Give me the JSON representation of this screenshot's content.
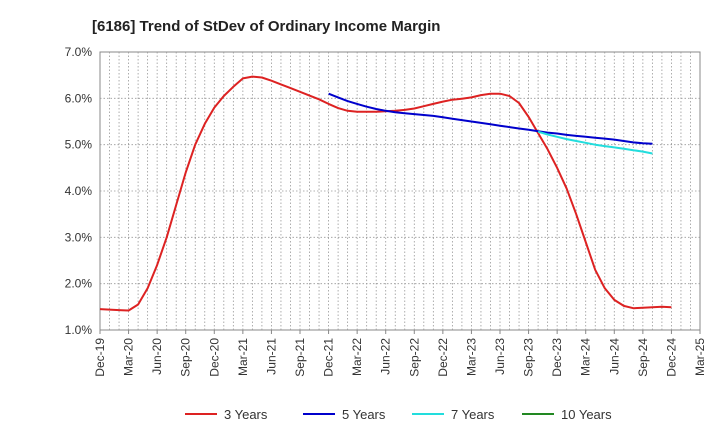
{
  "chart_data": {
    "type": "line",
    "title": "[6186]  Trend of StDev of Ordinary Income Margin",
    "xlabel": "",
    "ylabel": "",
    "ylim": [
      1.0,
      7.0
    ],
    "yticks": [
      "1.0%",
      "2.0%",
      "3.0%",
      "4.0%",
      "5.0%",
      "6.0%",
      "7.0%"
    ],
    "xticks": [
      "Dec-19",
      "Mar-20",
      "Jun-20",
      "Sep-20",
      "Dec-20",
      "Mar-21",
      "Jun-21",
      "Sep-21",
      "Dec-21",
      "Mar-22",
      "Jun-22",
      "Sep-22",
      "Dec-22",
      "Mar-23",
      "Jun-23",
      "Sep-23",
      "Dec-23",
      "Mar-24",
      "Jun-24",
      "Sep-24",
      "Dec-24",
      "Mar-25"
    ],
    "grid": true,
    "legend_position": "bottom",
    "series": [
      {
        "name": "3 Years",
        "color": "#dd2222",
        "start_index": 0,
        "values": [
          1.45,
          1.44,
          1.43,
          1.42,
          1.55,
          1.9,
          2.4,
          3.0,
          3.7,
          4.4,
          5.0,
          5.45,
          5.8,
          6.05,
          6.25,
          6.43,
          6.47,
          6.45,
          6.38,
          6.3,
          6.22,
          6.14,
          6.06,
          5.98,
          5.88,
          5.79,
          5.73,
          5.71,
          5.71,
          5.71,
          5.72,
          5.73,
          5.75,
          5.78,
          5.83,
          5.88,
          5.93,
          5.97,
          5.99,
          6.02,
          6.07,
          6.1,
          6.1,
          6.05,
          5.9,
          5.6,
          5.25,
          4.9,
          4.5,
          4.05,
          3.5,
          2.9,
          2.3,
          1.9,
          1.65,
          1.52,
          1.47,
          1.48,
          1.49,
          1.5,
          1.49
        ]
      },
      {
        "name": "5 Years",
        "color": "#0000cc",
        "start_index": 24,
        "values": [
          6.1,
          6.02,
          5.94,
          5.88,
          5.82,
          5.77,
          5.73,
          5.7,
          5.68,
          5.66,
          5.64,
          5.62,
          5.59,
          5.56,
          5.53,
          5.5,
          5.47,
          5.44,
          5.41,
          5.38,
          5.35,
          5.32,
          5.29,
          5.26,
          5.24,
          5.21,
          5.19,
          5.17,
          5.15,
          5.13,
          5.11,
          5.08,
          5.05,
          5.03,
          5.02
        ]
      },
      {
        "name": "7 Years",
        "color": "#22dddd",
        "start_index": 46,
        "values": [
          5.28,
          5.22,
          5.17,
          5.12,
          5.08,
          5.04,
          5.0,
          4.97,
          4.94,
          4.91,
          4.88,
          4.85,
          4.81
        ]
      },
      {
        "name": "10 Years",
        "color": "#228822",
        "start_index": 0,
        "values": []
      }
    ]
  }
}
